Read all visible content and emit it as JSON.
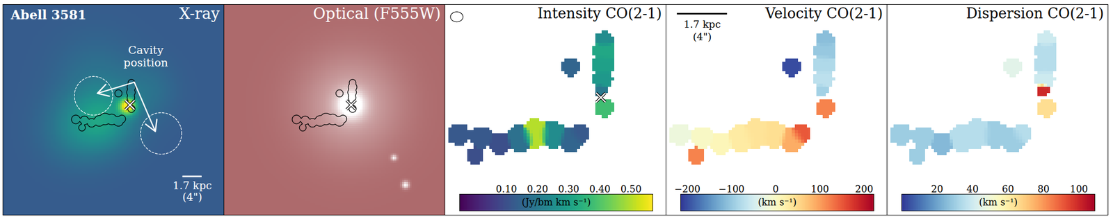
{
  "chart_data": [
    {
      "type": "image",
      "title": "X-ray",
      "label": "Abell 3581",
      "color": "viridis",
      "tick_labels": false,
      "xlim": [
        -26.4,
        19.6
      ],
      "ylim": [
        -22.8,
        20.7
      ],
      "zlim": [
        0,
        1.05
      ],
      "background": 0.3,
      "emission": [
        {
          "x": -0.4,
          "y": -0.3,
          "amplitude": 0.7,
          "sigma": 1.2
        },
        {
          "x": -5,
          "y": -3,
          "amplitude": 0.22,
          "sigma": 4.5
        },
        {
          "x": -11,
          "y": -5,
          "amplitude": 0.15,
          "sigma": 5
        },
        {
          "x": -7,
          "y": 6,
          "amplitude": 0.08,
          "sigma": 6
        },
        {
          "x": 4,
          "y": 3,
          "amplitude": 0.08,
          "sigma": 4
        }
      ],
      "contour": true,
      "nucleus": {
        "x": 0,
        "y": 0
      },
      "cavities": [
        {
          "x": -7.6,
          "y": 1.9,
          "r": 4.0
        },
        {
          "x": 6.5,
          "y": -5.9,
          "r": 4.3
        }
      ],
      "arrows": [
        {
          "x1": 0.9,
          "y1": 4.7,
          "x2": -6.8,
          "y2": 2.4
        },
        {
          "x1": 0.9,
          "y1": 4.7,
          "x2": 5.3,
          "y2": -5.5
        }
      ],
      "annotation": {
        "text": "Cavity position",
        "x": 3.3,
        "y": 10.1
      },
      "scale_bar": {
        "length": 4,
        "label": "1.7 kpc",
        "sublabel": "(4\")"
      }
    },
    {
      "type": "image",
      "title": "Optical (F555W)",
      "color": "#ad6a6c",
      "tick_labels": false,
      "xlim": [
        -26.2,
        19.4
      ],
      "ylim": [
        -22.8,
        20.7
      ],
      "zlim": [
        0,
        1
      ],
      "background": 0,
      "emission": [
        {
          "x": 0,
          "y": 0,
          "amplitude": 1.0,
          "sigma": 2.0
        },
        {
          "x": 0,
          "y": 0,
          "amplitude": 0.45,
          "sigma": 7
        },
        {
          "x": 8.9,
          "y": -11,
          "amplitude": 0.9,
          "sigma": 0.4
        },
        {
          "x": 11.3,
          "y": -16.6,
          "amplitude": 1.0,
          "sigma": 0.5
        }
      ],
      "contour": true,
      "nucleus": {
        "x": 0,
        "y": 0
      }
    },
    {
      "type": "heatmap",
      "title": "Intensity CO(2-1)",
      "field": "intensity",
      "color": "viridis",
      "tick_labels": false,
      "xlim": [
        -12.4,
        5.2
      ],
      "ylim": [
        -9.4,
        7.4
      ],
      "nucleus": {
        "x": 0,
        "y": 0
      },
      "beam": {
        "major": 1.0,
        "minor": 0.8
      },
      "colorbar": {
        "range": [
          -0.05,
          0.57
        ],
        "ticks": [
          0.1,
          0.2,
          0.3,
          0.4,
          0.5
        ],
        "label": "(Jy/bm km s⁻¹)"
      }
    },
    {
      "type": "heatmap",
      "title": "Velocity CO(2-1)",
      "field": "velocity",
      "color": "RdYlBu_r",
      "tick_labels": false,
      "xlim": [
        -12.4,
        5.2
      ],
      "ylim": [
        -9.4,
        7.4
      ],
      "scale_bar": {
        "length": 4,
        "label": "1.7 kpc",
        "sublabel": "(4\")"
      },
      "colorbar": {
        "range": [
          -215,
          222
        ],
        "ticks": [
          -200,
          -100,
          0,
          100,
          200
        ],
        "label": "(km s⁻¹)"
      }
    },
    {
      "type": "heatmap",
      "title": "Dispersion CO(2-1)",
      "field": "dispersion",
      "color": "RdYlBu_r",
      "tick_labels": false,
      "xlim": [
        -12.4,
        5.2
      ],
      "ylim": [
        -9.4,
        7.4
      ],
      "colorbar": {
        "range": [
          0,
          109
        ],
        "ticks": [
          20,
          40,
          60,
          80,
          100
        ],
        "label": "(km s⁻¹)"
      }
    }
  ],
  "co_clumps": [
    {
      "x": 0.3,
      "y": 4.6,
      "r": 0.7,
      "intensity": 0.25,
      "velocity": -110,
      "dispersion": 40
    },
    {
      "x": 0.3,
      "y": 3.7,
      "r": 0.9,
      "intensity": 0.32,
      "velocity": -100,
      "dispersion": 35
    },
    {
      "x": 0.2,
      "y": 2.6,
      "r": 0.9,
      "intensity": 0.3,
      "velocity": -80,
      "dispersion": 35
    },
    {
      "x": 0.2,
      "y": 1.5,
      "r": 0.8,
      "intensity": 0.28,
      "velocity": -70,
      "dispersion": 40
    },
    {
      "x": 0.0,
      "y": 0.6,
      "r": 0.5,
      "intensity": 0.2,
      "velocity": -90,
      "dispersion": 100
    },
    {
      "x": 0.3,
      "y": -0.8,
      "r": 0.75,
      "intensity": 0.38,
      "velocity": 120,
      "dispersion": 65
    },
    {
      "x": -2.4,
      "y": 2.4,
      "r": 0.75,
      "intensity": 0.15,
      "velocity": -200,
      "dispersion": 45
    },
    {
      "x": -11.3,
      "y": -3.0,
      "r": 0.9,
      "intensity": 0.12,
      "velocity": -20,
      "dispersion": 30
    },
    {
      "x": -9.5,
      "y": -3.2,
      "r": 0.9,
      "intensity": 0.12,
      "velocity": 0,
      "dispersion": 30
    },
    {
      "x": -8.0,
      "y": -3.7,
      "r": 0.9,
      "intensity": 0.1,
      "velocity": 10,
      "dispersion": 25
    },
    {
      "x": -6.4,
      "y": -3.3,
      "r": 1.1,
      "intensity": 0.18,
      "velocity": 30,
      "dispersion": 35
    },
    {
      "x": -5.2,
      "y": -2.9,
      "r": 1.2,
      "intensity": 0.5,
      "velocity": 40,
      "dispersion": 35
    },
    {
      "x": -3.8,
      "y": -3.0,
      "r": 1.1,
      "intensity": 0.25,
      "velocity": 45,
      "dispersion": 30
    },
    {
      "x": -2.4,
      "y": -3.4,
      "r": 1.0,
      "intensity": 0.15,
      "velocity": 90,
      "dispersion": 30
    },
    {
      "x": -1.7,
      "y": -2.9,
      "r": 0.8,
      "intensity": 0.12,
      "velocity": 150,
      "dispersion": 35
    },
    {
      "x": -10.0,
      "y": -4.7,
      "r": 0.7,
      "intensity": 0.1,
      "velocity": 120,
      "dispersion": 30
    }
  ]
}
